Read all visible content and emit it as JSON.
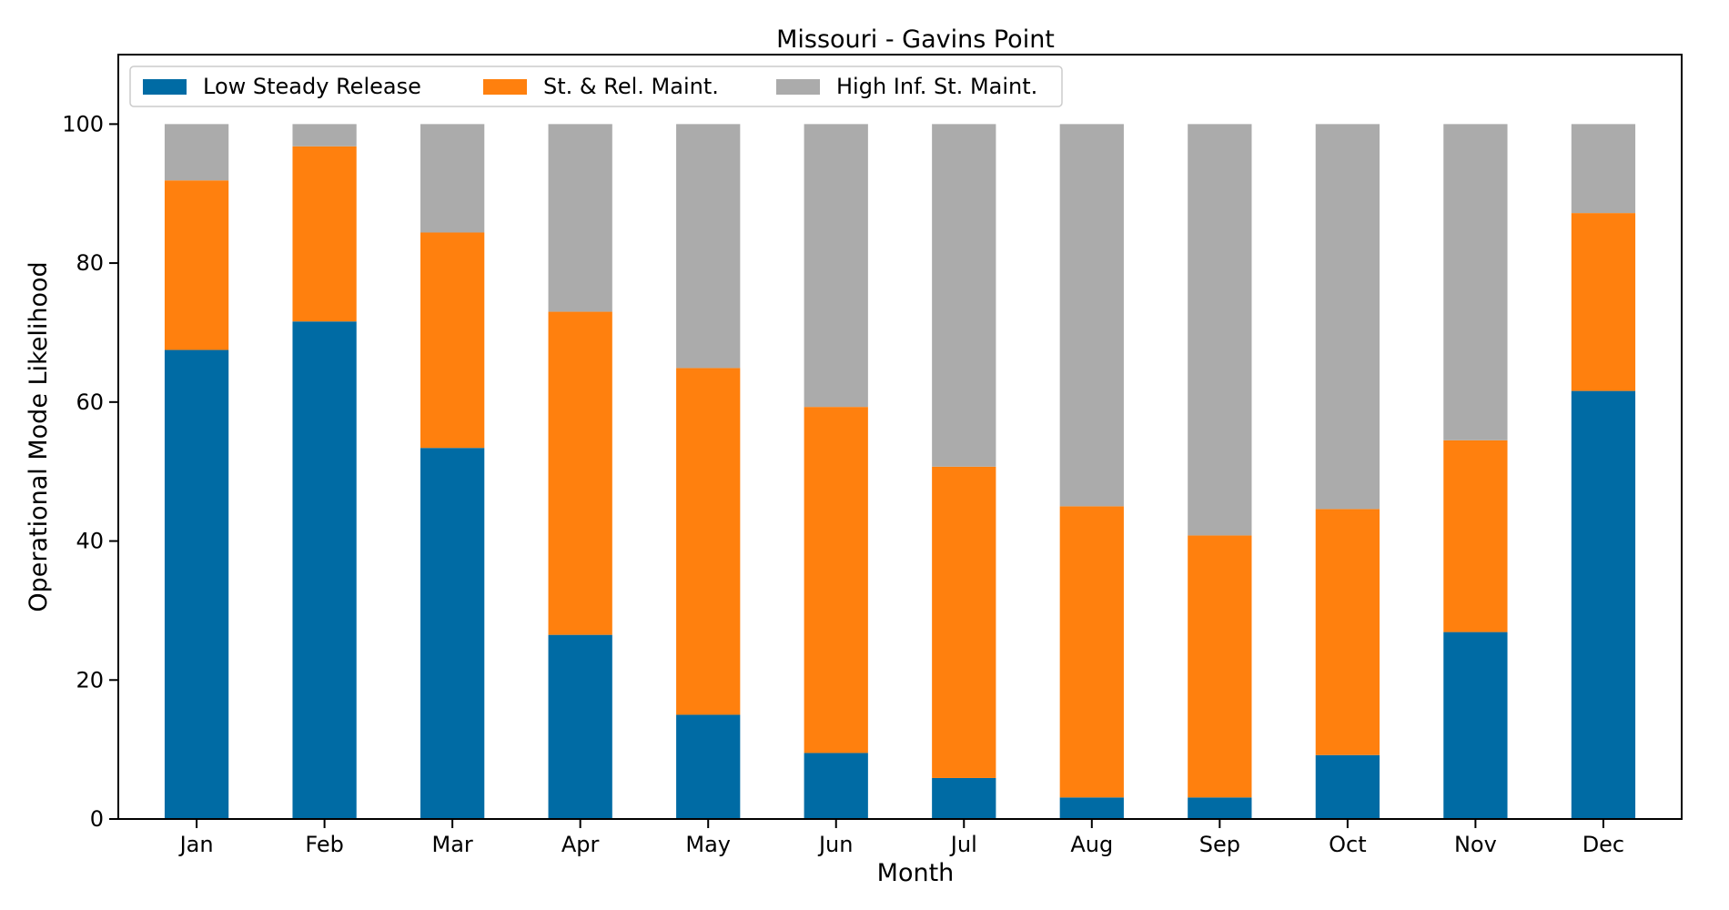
{
  "chart_data": {
    "type": "bar",
    "stacked": true,
    "title": "Missouri - Gavins Point",
    "xlabel": "Month",
    "ylabel": "Operational Mode Likelihood",
    "ylim": [
      0,
      110
    ],
    "yticks": [
      0,
      20,
      40,
      60,
      80,
      100
    ],
    "grid": false,
    "legend_position": "top-left",
    "categories": [
      "Jan",
      "Feb",
      "Mar",
      "Apr",
      "May",
      "Jun",
      "Jul",
      "Aug",
      "Sep",
      "Oct",
      "Nov",
      "Dec"
    ],
    "series": [
      {
        "name": "Low Steady Release",
        "color": "#006BA4",
        "values": [
          67.5,
          71.6,
          53.4,
          26.5,
          15.0,
          9.5,
          5.9,
          3.1,
          3.1,
          9.2,
          26.9,
          61.6
        ]
      },
      {
        "name": "St. & Rel. Maint.",
        "color": "#FF800E",
        "values": [
          24.4,
          25.2,
          31.0,
          46.5,
          49.9,
          49.8,
          44.8,
          41.9,
          37.7,
          35.4,
          27.6,
          25.6
        ]
      },
      {
        "name": "High Inf. St. Maint.",
        "color": "#ABABAB",
        "values": [
          8.1,
          3.2,
          15.6,
          27.0,
          35.1,
          40.7,
          49.3,
          55.0,
          59.2,
          55.4,
          45.5,
          12.8
        ]
      }
    ]
  }
}
